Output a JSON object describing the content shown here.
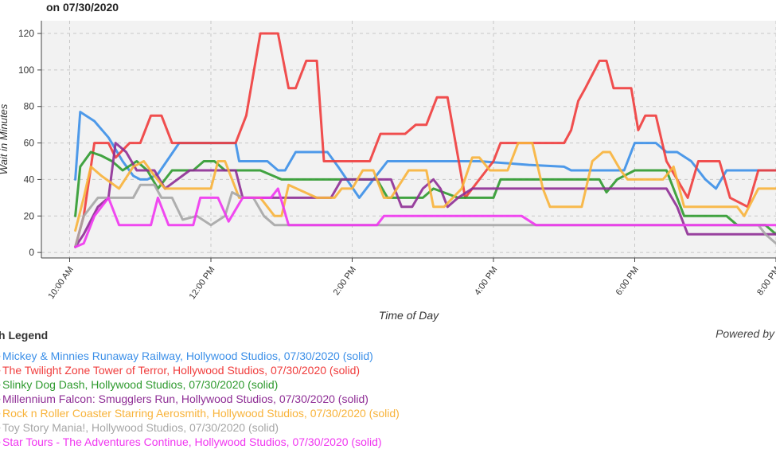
{
  "chart_data": {
    "type": "line",
    "title": "on 07/30/2020",
    "xlabel": "Time of Day",
    "ylabel": "Wait in Minutes",
    "x_unit": "hours (24h clock)",
    "xlim": [
      9.6,
      20.0
    ],
    "ylim": [
      -3,
      127
    ],
    "y_ticks": [
      0,
      20,
      40,
      60,
      80,
      100,
      120
    ],
    "x_ticks": [
      {
        "x": 10,
        "label": "10:00 AM"
      },
      {
        "x": 12,
        "label": "12:00 PM"
      },
      {
        "x": 14,
        "label": "2:00 PM"
      },
      {
        "x": 16,
        "label": "4:00 PM"
      },
      {
        "x": 18,
        "label": "6:00 PM"
      },
      {
        "x": 20,
        "label": "8:00 PM"
      }
    ],
    "grid": true,
    "legend_title": "h Legend",
    "powered_by": "Powered by",
    "series": [
      {
        "name": "Mickey & Minnies Runaway Railway, Hollywood Studios, 07/30/2020 (solid)",
        "color": "#3b8fe8",
        "points": [
          [
            10.08,
            40
          ],
          [
            10.15,
            77
          ],
          [
            10.35,
            72
          ],
          [
            10.55,
            63
          ],
          [
            10.75,
            50
          ],
          [
            10.9,
            42
          ],
          [
            11.0,
            40
          ],
          [
            11.1,
            40
          ],
          [
            11.25,
            43
          ],
          [
            11.55,
            60
          ],
          [
            12.0,
            60
          ],
          [
            12.35,
            60
          ],
          [
            12.4,
            50
          ],
          [
            12.8,
            50
          ],
          [
            12.95,
            45
          ],
          [
            13.05,
            45
          ],
          [
            13.2,
            55
          ],
          [
            13.65,
            55
          ],
          [
            13.8,
            47
          ],
          [
            14.1,
            30
          ],
          [
            14.3,
            40
          ],
          [
            14.5,
            50
          ],
          [
            15.8,
            50
          ],
          [
            16.5,
            48
          ],
          [
            17.0,
            47
          ],
          [
            17.1,
            45
          ],
          [
            17.6,
            45
          ],
          [
            17.75,
            45
          ],
          [
            17.85,
            45
          ],
          [
            18.0,
            60
          ],
          [
            18.3,
            60
          ],
          [
            18.45,
            55
          ],
          [
            18.6,
            55
          ],
          [
            18.8,
            50
          ],
          [
            19.0,
            40
          ],
          [
            19.15,
            35
          ],
          [
            19.3,
            45
          ],
          [
            20.0,
            45
          ]
        ]
      },
      {
        "name": "The Twilight Zone Tower of Terror, Hollywood Studios, 07/30/2020 (solid)",
        "color": "#f03c3c",
        "points": [
          [
            10.08,
            3
          ],
          [
            10.2,
            20
          ],
          [
            10.35,
            60
          ],
          [
            10.55,
            60
          ],
          [
            10.65,
            52
          ],
          [
            10.85,
            60
          ],
          [
            11.0,
            60
          ],
          [
            11.15,
            75
          ],
          [
            11.3,
            75
          ],
          [
            11.45,
            60
          ],
          [
            12.35,
            60
          ],
          [
            12.5,
            75
          ],
          [
            12.7,
            120
          ],
          [
            12.95,
            120
          ],
          [
            13.1,
            90
          ],
          [
            13.2,
            90
          ],
          [
            13.35,
            105
          ],
          [
            13.5,
            105
          ],
          [
            13.6,
            50
          ],
          [
            14.25,
            50
          ],
          [
            14.4,
            65
          ],
          [
            14.75,
            65
          ],
          [
            14.9,
            70
          ],
          [
            15.05,
            70
          ],
          [
            15.2,
            85
          ],
          [
            15.35,
            85
          ],
          [
            15.6,
            30
          ],
          [
            16.0,
            50
          ],
          [
            16.1,
            60
          ],
          [
            16.5,
            60
          ],
          [
            17.0,
            60
          ],
          [
            17.1,
            67
          ],
          [
            17.2,
            83
          ],
          [
            17.3,
            90
          ],
          [
            17.5,
            105
          ],
          [
            17.6,
            105
          ],
          [
            17.7,
            90
          ],
          [
            17.95,
            90
          ],
          [
            18.05,
            67
          ],
          [
            18.15,
            75
          ],
          [
            18.3,
            75
          ],
          [
            18.45,
            50
          ],
          [
            18.6,
            40
          ],
          [
            18.75,
            30
          ],
          [
            18.9,
            50
          ],
          [
            19.2,
            50
          ],
          [
            19.35,
            30
          ],
          [
            19.6,
            25
          ],
          [
            19.75,
            45
          ],
          [
            20.0,
            45
          ]
        ]
      },
      {
        "name": "Slinky Dog Dash, Hollywood Studios, 07/30/2020 (solid)",
        "color": "#2e9a2e",
        "points": [
          [
            10.08,
            20
          ],
          [
            10.15,
            47
          ],
          [
            10.3,
            55
          ],
          [
            10.45,
            53
          ],
          [
            10.6,
            50
          ],
          [
            10.75,
            45
          ],
          [
            10.95,
            50
          ],
          [
            11.1,
            45
          ],
          [
            11.25,
            35
          ],
          [
            11.45,
            45
          ],
          [
            11.75,
            45
          ],
          [
            11.9,
            50
          ],
          [
            12.05,
            50
          ],
          [
            12.2,
            45
          ],
          [
            12.5,
            45
          ],
          [
            12.7,
            45
          ],
          [
            13.0,
            40
          ],
          [
            14.2,
            40
          ],
          [
            14.35,
            40
          ],
          [
            14.5,
            30
          ],
          [
            14.8,
            30
          ],
          [
            15.0,
            30
          ],
          [
            15.15,
            35
          ],
          [
            15.5,
            30
          ],
          [
            16.0,
            30
          ],
          [
            16.1,
            40
          ],
          [
            17.5,
            40
          ],
          [
            17.6,
            33
          ],
          [
            17.75,
            40
          ],
          [
            18.0,
            45
          ],
          [
            18.3,
            45
          ],
          [
            18.45,
            45
          ],
          [
            18.7,
            20
          ],
          [
            19.3,
            20
          ],
          [
            19.45,
            15
          ],
          [
            19.85,
            15
          ],
          [
            20.0,
            10
          ]
        ]
      },
      {
        "name": "Millennium Falcon: Smugglers Run, Hollywood Studios, 07/30/2020 (solid)",
        "color": "#8e2d95",
        "points": [
          [
            10.08,
            3
          ],
          [
            10.2,
            10
          ],
          [
            10.4,
            25
          ],
          [
            10.55,
            30
          ],
          [
            10.65,
            60
          ],
          [
            10.8,
            55
          ],
          [
            10.95,
            45
          ],
          [
            11.2,
            45
          ],
          [
            11.35,
            35
          ],
          [
            11.7,
            45
          ],
          [
            12.35,
            45
          ],
          [
            12.45,
            30
          ],
          [
            12.85,
            30
          ],
          [
            13.0,
            30
          ],
          [
            13.5,
            30
          ],
          [
            13.7,
            30
          ],
          [
            13.85,
            40
          ],
          [
            14.0,
            40
          ],
          [
            14.2,
            40
          ],
          [
            14.55,
            40
          ],
          [
            14.7,
            25
          ],
          [
            14.85,
            25
          ],
          [
            15.0,
            35
          ],
          [
            15.15,
            40
          ],
          [
            15.25,
            35
          ],
          [
            15.35,
            25
          ],
          [
            15.5,
            30
          ],
          [
            15.7,
            35
          ],
          [
            16.3,
            35
          ],
          [
            16.5,
            35
          ],
          [
            17.0,
            35
          ],
          [
            17.1,
            35
          ],
          [
            17.5,
            35
          ],
          [
            18.0,
            35
          ],
          [
            18.45,
            35
          ],
          [
            18.6,
            25
          ],
          [
            18.75,
            10
          ],
          [
            19.3,
            10
          ],
          [
            20.0,
            10
          ]
        ]
      },
      {
        "name": "Rock n Roller Coaster Starring Aerosmith, Hollywood Studios, 07/30/2020 (solid)",
        "color": "#f8b33a",
        "points": [
          [
            10.08,
            12
          ],
          [
            10.2,
            30
          ],
          [
            10.3,
            47
          ],
          [
            10.45,
            42
          ],
          [
            10.7,
            35
          ],
          [
            10.9,
            47
          ],
          [
            11.05,
            50
          ],
          [
            11.2,
            42
          ],
          [
            11.35,
            35
          ],
          [
            12.0,
            35
          ],
          [
            12.1,
            50
          ],
          [
            12.2,
            50
          ],
          [
            12.4,
            30
          ],
          [
            12.7,
            30
          ],
          [
            12.8,
            25
          ],
          [
            12.9,
            20
          ],
          [
            13.0,
            20
          ],
          [
            13.1,
            37
          ],
          [
            13.5,
            30
          ],
          [
            13.75,
            30
          ],
          [
            13.85,
            35
          ],
          [
            14.0,
            35
          ],
          [
            14.15,
            45
          ],
          [
            14.3,
            45
          ],
          [
            14.45,
            30
          ],
          [
            14.55,
            30
          ],
          [
            14.8,
            45
          ],
          [
            15.05,
            45
          ],
          [
            15.15,
            25
          ],
          [
            15.3,
            25
          ],
          [
            15.55,
            35
          ],
          [
            15.7,
            52
          ],
          [
            15.8,
            52
          ],
          [
            15.95,
            45
          ],
          [
            16.2,
            45
          ],
          [
            16.35,
            60
          ],
          [
            16.55,
            60
          ],
          [
            16.7,
            35
          ],
          [
            16.8,
            25
          ],
          [
            17.25,
            25
          ],
          [
            17.4,
            50
          ],
          [
            17.55,
            55
          ],
          [
            17.65,
            55
          ],
          [
            17.8,
            45
          ],
          [
            17.9,
            40
          ],
          [
            18.4,
            40
          ],
          [
            18.55,
            47
          ],
          [
            18.7,
            25
          ],
          [
            19.3,
            25
          ],
          [
            19.45,
            25
          ],
          [
            19.55,
            20
          ],
          [
            19.75,
            35
          ],
          [
            20.0,
            35
          ]
        ]
      },
      {
        "name": "Toy Story Mania!, Hollywood Studios, 07/30/2020 (solid)",
        "color": "#a6a6a6",
        "points": [
          [
            10.08,
            3
          ],
          [
            10.2,
            20
          ],
          [
            10.4,
            30
          ],
          [
            10.65,
            30
          ],
          [
            10.9,
            30
          ],
          [
            11.0,
            37
          ],
          [
            11.2,
            37
          ],
          [
            11.3,
            30
          ],
          [
            11.45,
            30
          ],
          [
            11.6,
            18
          ],
          [
            11.8,
            20
          ],
          [
            12.0,
            15
          ],
          [
            12.2,
            20
          ],
          [
            12.3,
            33
          ],
          [
            12.45,
            30
          ],
          [
            12.6,
            30
          ],
          [
            12.75,
            20
          ],
          [
            12.9,
            15
          ],
          [
            13.5,
            15
          ],
          [
            14.0,
            15
          ],
          [
            14.5,
            15
          ],
          [
            16.5,
            15
          ],
          [
            17.5,
            15
          ],
          [
            18.5,
            15
          ],
          [
            19.5,
            15
          ],
          [
            19.75,
            15
          ],
          [
            19.85,
            10
          ],
          [
            20.0,
            5
          ]
        ]
      },
      {
        "name": "Star Tours - The Adventures Continue, Hollywood Studios, 07/30/2020 (solid)",
        "color": "#f035f0",
        "points": [
          [
            10.08,
            3
          ],
          [
            10.2,
            5
          ],
          [
            10.35,
            20
          ],
          [
            10.55,
            30
          ],
          [
            10.7,
            15
          ],
          [
            11.15,
            15
          ],
          [
            11.25,
            30
          ],
          [
            11.4,
            15
          ],
          [
            11.75,
            15
          ],
          [
            11.85,
            30
          ],
          [
            12.1,
            30
          ],
          [
            12.25,
            17
          ],
          [
            12.45,
            30
          ],
          [
            12.85,
            30
          ],
          [
            12.95,
            35
          ],
          [
            13.1,
            15
          ],
          [
            13.6,
            15
          ],
          [
            14.0,
            15
          ],
          [
            14.35,
            15
          ],
          [
            14.45,
            20
          ],
          [
            15.0,
            20
          ],
          [
            15.5,
            20
          ],
          [
            16.0,
            20
          ],
          [
            16.4,
            20
          ],
          [
            16.6,
            15
          ],
          [
            17.5,
            15
          ],
          [
            18.5,
            15
          ],
          [
            19.5,
            15
          ],
          [
            20.0,
            15
          ]
        ]
      }
    ]
  }
}
